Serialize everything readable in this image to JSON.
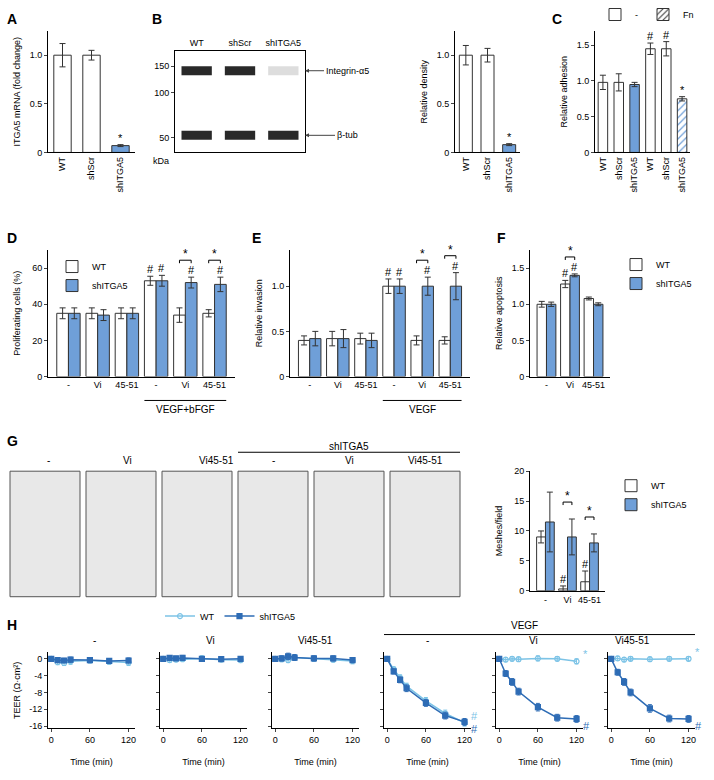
{
  "chart_data": [
    {
      "panel": "A",
      "type": "bar",
      "categories": [
        "WT",
        "shScr",
        "shITGA5"
      ],
      "values": [
        1.0,
        1.0,
        0.07
      ],
      "errors": [
        0.12,
        0.05,
        0.01
      ],
      "colors": [
        "#ffffff",
        "#ffffff",
        "#6f9fd8"
      ],
      "y_label": "ITGA5 mRNA (fold change)",
      "ylim": [
        0,
        1.25
      ],
      "yticks": [
        0,
        0.5,
        {
          "value": 1,
          "label": "1.0"
        }
      ],
      "annotations": [
        {
          "text": "*",
          "index": 2
        }
      ]
    },
    {
      "panel": "B",
      "type": "bar",
      "categories": [
        "WT",
        "shScr",
        "shITGA5"
      ],
      "values": [
        1.0,
        1.0,
        0.08
      ],
      "errors": [
        0.1,
        0.07,
        0.01
      ],
      "colors": [
        "#ffffff",
        "#ffffff",
        "#6f9fd8"
      ],
      "y_label": "Relative density",
      "ylim": [
        0,
        1.25
      ],
      "yticks": [
        0,
        0.5,
        {
          "value": 1,
          "label": "1.0"
        }
      ],
      "annotations": [
        {
          "text": "*",
          "index": 2
        }
      ],
      "blot": {
        "lanes": [
          "WT",
          "shScr",
          "shITGA5"
        ],
        "y_label": "kDa",
        "log": "y",
        "ylim": [
          40,
          190
        ],
        "yticks": [
          150,
          100,
          50
        ],
        "bands": [
          {
            "label": "Integrin-α5",
            "kda": 140,
            "intensity": [
              1.0,
              1.0,
              0.08
            ]
          },
          {
            "label": "β-tub",
            "kda": 52,
            "intensity": [
              1.0,
              1.0,
              1.0
            ]
          }
        ]
      }
    },
    {
      "panel": "C",
      "type": "bar",
      "categories": [
        "WT",
        "shScr",
        "shITGA5",
        "WT",
        "shScr",
        "shITGA5"
      ],
      "legend": "top",
      "y_label": "Relative adhesion",
      "ylim": [
        0,
        1.7
      ],
      "yticks": [
        0,
        0.5,
        {
          "value": 1,
          "label": "1.0"
        },
        1.5
      ],
      "series": [
        {
          "name": "-",
          "values": [
            0.98,
            0.98,
            0.95,
            null,
            null,
            null
          ],
          "errors": [
            0.1,
            0.12,
            0.03,
            null,
            null,
            null
          ],
          "colors": [
            "#ffffff",
            "#ffffff",
            "#6f9fd8",
            "#ffffff",
            "#ffffff",
            "#6f9fd8"
          ]
        },
        {
          "name": "Fn",
          "marker": "hatch",
          "values": [
            null,
            null,
            null,
            1.45,
            1.45,
            0.75
          ],
          "errors": [
            null,
            null,
            null,
            0.08,
            0.1,
            0.03
          ],
          "colors": [
            "#ffffff",
            "#ffffff",
            "#6f9fd8",
            "#ffffff",
            "#ffffff",
            "#6f9fd8"
          ]
        }
      ],
      "annotations": [
        {
          "text": "#",
          "index": 3
        },
        {
          "text": "#",
          "index": 4
        },
        {
          "text": "*",
          "index": 5
        }
      ]
    },
    {
      "panel": "D",
      "type": "bar",
      "categories": [
        "-",
        "Vi",
        "45-51",
        "-",
        "Vi",
        "45-51"
      ],
      "groups": [
        {
          "label": "VEGF+bFGF",
          "from": 3,
          "to": 5
        }
      ],
      "legend": "top-left",
      "y_label": "Proliferating cells (%)",
      "ylim": [
        0,
        70
      ],
      "yticks": [
        0,
        20,
        40,
        60
      ],
      "series": [
        {
          "name": "WT",
          "color": "#ffffff",
          "values": [
            35,
            35,
            35,
            53,
            34,
            35
          ],
          "errors": [
            3,
            3,
            3,
            2.5,
            4,
            2
          ]
        },
        {
          "name": "shITGA5",
          "color": "#6f9fd8",
          "values": [
            35,
            34,
            35,
            53,
            52,
            51
          ],
          "errors": [
            3,
            3,
            3,
            3,
            3,
            4
          ]
        }
      ],
      "annotations": [
        {
          "text": "#",
          "series": 0,
          "index": 3
        },
        {
          "text": "#",
          "series": 1,
          "index": 3
        },
        {
          "text": "#",
          "series": 1,
          "index": 4
        },
        {
          "text": "#",
          "series": 1,
          "index": 5
        },
        {
          "text": "*",
          "index": 4,
          "bracket": true
        },
        {
          "text": "*",
          "index": 5,
          "bracket": true
        }
      ]
    },
    {
      "panel": "E",
      "type": "bar",
      "categories": [
        "-",
        "Vi",
        "45-51",
        "-",
        "Vi",
        "45-51"
      ],
      "groups": [
        {
          "label": "VEGF",
          "from": 3,
          "to": 5
        }
      ],
      "y_label": "Relative invasion",
      "ylim": [
        0,
        1.4
      ],
      "yticks": [
        0,
        0.5,
        {
          "value": 1,
          "label": "1.0"
        }
      ],
      "series": [
        {
          "name": "WT",
          "color": "#ffffff",
          "values": [
            0.4,
            0.42,
            0.42,
            1.0,
            0.4,
            0.4
          ],
          "errors": [
            0.05,
            0.08,
            0.06,
            0.08,
            0.05,
            0.04
          ]
        },
        {
          "name": "shITGA5",
          "color": "#6f9fd8",
          "values": [
            0.42,
            0.42,
            0.4,
            1.0,
            1.0,
            1.0
          ],
          "errors": [
            0.08,
            0.1,
            0.08,
            0.08,
            0.1,
            0.15
          ]
        }
      ],
      "annotations": [
        {
          "text": "#",
          "series": 0,
          "index": 3
        },
        {
          "text": "#",
          "series": 1,
          "index": 3
        },
        {
          "text": "#",
          "series": 1,
          "index": 4
        },
        {
          "text": "#",
          "series": 1,
          "index": 5
        },
        {
          "text": "*",
          "index": 4,
          "bracket": true
        },
        {
          "text": "*",
          "index": 5,
          "bracket": true
        }
      ]
    },
    {
      "panel": "F",
      "type": "bar",
      "categories": [
        "-",
        "Vi",
        "45-51"
      ],
      "legend": "right",
      "y_label": "Relative apoptosis",
      "ylim": [
        0,
        1.75
      ],
      "yticks": [
        0,
        0.5,
        {
          "value": 1,
          "label": "1.0"
        },
        1.5
      ],
      "series": [
        {
          "name": "WT",
          "color": "#ffffff",
          "values": [
            1.0,
            1.28,
            1.08
          ],
          "errors": [
            0.04,
            0.05,
            0.02
          ]
        },
        {
          "name": "shITGA5",
          "color": "#6f9fd8",
          "values": [
            1.0,
            1.4,
            1.0
          ],
          "errors": [
            0.03,
            0.02,
            0.02
          ]
        }
      ],
      "annotations": [
        {
          "text": "#",
          "series": 0,
          "index": 1
        },
        {
          "text": "#",
          "series": 1,
          "index": 1
        },
        {
          "text": "*",
          "index": 1,
          "bracket": true
        }
      ]
    },
    {
      "type": "bar",
      "categories": [
        "-",
        "Vi",
        "45-51"
      ],
      "legend": "right",
      "y_label": "Meshes/field",
      "ylim": [
        0,
        20
      ],
      "yticks": [
        0,
        5,
        10,
        15,
        20
      ],
      "series": [
        {
          "name": "WT",
          "color": "#ffffff",
          "values": [
            9,
            0.3,
            1.5
          ],
          "errors": [
            1,
            0.5,
            1.8
          ]
        },
        {
          "name": "shITGA5",
          "color": "#6f9fd8",
          "values": [
            11.5,
            9,
            8
          ],
          "errors": [
            5,
            3,
            1.5
          ]
        }
      ],
      "annotations": [
        {
          "text": "#",
          "series": 0,
          "index": 1
        },
        {
          "text": "#",
          "series": 0,
          "index": 2
        },
        {
          "text": "*",
          "index": 1,
          "bracket": true
        },
        {
          "text": "*",
          "index": 2,
          "bracket": true
        }
      ]
    },
    {
      "panel": "H",
      "type": "line",
      "x": [
        0,
        10,
        20,
        30,
        60,
        90,
        120
      ],
      "xlim": [
        -5,
        130
      ],
      "xticks": [
        0,
        60,
        120
      ],
      "ylim": [
        -16.5,
        1.5
      ],
      "yticks": [
        0,
        -4,
        -8,
        -12,
        -16
      ],
      "x_label": "Time (min)",
      "y_label": "TEER (Ω·cm²)",
      "legend": "top",
      "groups": [
        {
          "label": "VEGF",
          "from": 3,
          "to": 5
        }
      ],
      "series": [
        {
          "name": "WT",
          "color": "#7cc3e6",
          "marker": "circle-open"
        },
        {
          "name": "shITGA5",
          "color": "#2e6cb5",
          "marker": "square"
        }
      ],
      "facets": [
        {
          "title": "-",
          "values": [
            [
              0,
              -0.8,
              -1.0,
              -0.6,
              -0.4,
              -0.7,
              -0.9
            ],
            [
              0,
              -0.3,
              -0.4,
              -0.2,
              -0.3,
              -0.5,
              -0.4
            ]
          ],
          "errors": [
            [
              0,
              0.6,
              0.6,
              0.7,
              0.6,
              0.6,
              0.7
            ],
            [
              0,
              0.5,
              0.5,
              0.6,
              0.6,
              0.5,
              0.6
            ]
          ],
          "annotations": []
        },
        {
          "title": "Vi",
          "tick_labels": "x",
          "values": [
            [
              0,
              -0.3,
              -0.2,
              -0.1,
              0.1,
              -0.2,
              -0.3
            ],
            [
              0,
              0.2,
              0.1,
              0.2,
              0,
              -0.1,
              0
            ]
          ],
          "errors": [
            [
              0,
              0.5,
              0.5,
              0.5,
              0.6,
              0.5,
              0.6
            ],
            [
              0,
              0.5,
              0.5,
              0.6,
              0.5,
              0.5,
              0.5
            ]
          ],
          "annotations": []
        },
        {
          "title": "Vi45-51",
          "tick_labels": "x",
          "values": [
            [
              0,
              -0.1,
              -0.3,
              0.3,
              0,
              -0.2,
              -0.5
            ],
            [
              0,
              0.1,
              0.6,
              0.3,
              0.1,
              0.1,
              -0.3
            ]
          ],
          "errors": [
            [
              0,
              0.6,
              0.6,
              0.7,
              0.6,
              0.6,
              0.7
            ],
            [
              0,
              0.6,
              0.8,
              0.7,
              0.6,
              0.6,
              0.6
            ]
          ],
          "annotations": []
        },
        {
          "title": "-",
          "tick_labels": "x",
          "values": [
            [
              0,
              -2.5,
              -4.5,
              -6.5,
              -10,
              -13,
              -15.2
            ],
            [
              0,
              -3,
              -5,
              -7,
              -10.5,
              -13.5,
              -15
            ]
          ],
          "errors": [
            [
              0,
              0.6,
              0.7,
              0.7,
              0.8,
              0.8,
              0.8
            ],
            [
              0,
              0.6,
              0.7,
              0.8,
              0.8,
              0.8,
              0.8
            ]
          ],
          "annotations": [
            {
              "text": "#",
              "series": 0
            },
            {
              "text": "#",
              "series": 1
            }
          ]
        },
        {
          "title": "Vi",
          "tick_labels": "x",
          "values": [
            [
              0,
              -0.2,
              0,
              -0.1,
              0.1,
              0,
              -0.6
            ],
            [
              0,
              -3.5,
              -5.5,
              -7.8,
              -11.5,
              -14,
              -14.3
            ]
          ],
          "errors": [
            [
              0,
              0.5,
              0.5,
              0.5,
              0.6,
              0.5,
              0.6
            ],
            [
              0,
              0.7,
              0.8,
              0.8,
              0.9,
              0.8,
              0.8
            ]
          ],
          "annotations": [
            {
              "text": "*",
              "series": 0
            },
            {
              "text": "#",
              "series": 1
            }
          ]
        },
        {
          "title": "Vi45-51",
          "tick_labels": "x",
          "values": [
            [
              0,
              0.1,
              -0.2,
              0,
              -0.1,
              0,
              0
            ],
            [
              0,
              -3.2,
              -5.5,
              -8,
              -11.8,
              -14.2,
              -14.3
            ]
          ],
          "errors": [
            [
              0,
              0.5,
              0.5,
              0.5,
              0.5,
              0.5,
              0.5
            ],
            [
              0,
              0.7,
              0.8,
              0.8,
              0.9,
              0.8,
              0.8
            ]
          ],
          "annotations": [
            {
              "text": "*",
              "series": 0
            },
            {
              "text": "#",
              "series": 1
            }
          ]
        }
      ]
    }
  ],
  "micrographs": {
    "panel": "G",
    "labels": [
      "-",
      "Vi",
      "Vi45-51",
      "-",
      "Vi",
      "Vi45-51"
    ],
    "groups": [
      {
        "label": "shITGA5",
        "from": 3,
        "to": 5
      }
    ]
  }
}
